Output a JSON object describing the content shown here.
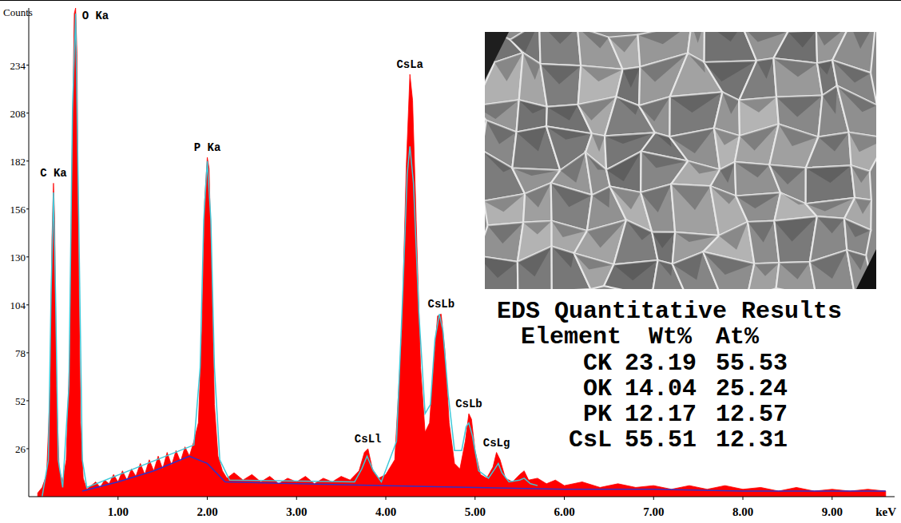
{
  "chart_data": {
    "type": "area",
    "x_label": "keV",
    "y_label": "Counts",
    "xlim": [
      0,
      9.7
    ],
    "ylim": [
      0,
      265
    ],
    "xticks": [
      {
        "value": 1,
        "label": "1.00"
      },
      {
        "value": 2,
        "label": "2.00"
      },
      {
        "value": 3,
        "label": "3.00"
      },
      {
        "value": 4,
        "label": "4.00"
      },
      {
        "value": 5,
        "label": "5.00"
      },
      {
        "value": 6,
        "label": "6.00"
      },
      {
        "value": 7,
        "label": "7.00"
      },
      {
        "value": 8,
        "label": "8.00"
      },
      {
        "value": 9,
        "label": "9.00"
      }
    ],
    "yticks": [
      26,
      52,
      78,
      104,
      130,
      156,
      182,
      208,
      234
    ],
    "grid": false,
    "series": [
      {
        "type": "area",
        "color": "#ff0000",
        "x": [
          0.1,
          0.15,
          0.2,
          0.24,
          0.26,
          0.277,
          0.29,
          0.31,
          0.34,
          0.38,
          0.42,
          0.46,
          0.49,
          0.51,
          0.525,
          0.54,
          0.56,
          0.58,
          0.61,
          0.65,
          0.7,
          0.75,
          0.8,
          0.85,
          0.9,
          0.95,
          1.0,
          1.05,
          1.1,
          1.15,
          1.2,
          1.25,
          1.3,
          1.35,
          1.4,
          1.45,
          1.5,
          1.55,
          1.6,
          1.65,
          1.7,
          1.75,
          1.8,
          1.85,
          1.9,
          1.94,
          1.97,
          2.0,
          2.02,
          2.05,
          2.08,
          2.12,
          2.17,
          2.22,
          2.3,
          2.4,
          2.5,
          2.6,
          2.7,
          2.8,
          2.9,
          3.0,
          3.1,
          3.2,
          3.3,
          3.4,
          3.5,
          3.6,
          3.7,
          3.76,
          3.8,
          3.85,
          3.92,
          4.0,
          4.1,
          4.18,
          4.23,
          4.27,
          4.3,
          4.34,
          4.39,
          4.44,
          4.49,
          4.54,
          4.58,
          4.62,
          4.66,
          4.71,
          4.77,
          4.83,
          4.89,
          4.93,
          4.96,
          5.0,
          5.06,
          5.13,
          5.2,
          5.24,
          5.28,
          5.34,
          5.42,
          5.5,
          5.55,
          5.6,
          5.7,
          5.8,
          5.9,
          6.0,
          6.2,
          6.4,
          6.6,
          6.8,
          7.0,
          7.2,
          7.4,
          7.6,
          7.8,
          8.0,
          8.2,
          8.4,
          8.6,
          8.8,
          9.0,
          9.2,
          9.4,
          9.6
        ],
        "values": [
          2,
          5,
          12,
          60,
          140,
          170,
          150,
          60,
          15,
          8,
          20,
          80,
          200,
          262,
          265,
          240,
          120,
          40,
          10,
          4,
          6,
          8,
          5,
          9,
          7,
          12,
          8,
          14,
          9,
          15,
          11,
          18,
          12,
          20,
          14,
          22,
          15,
          24,
          17,
          25,
          19,
          27,
          22,
          30,
          40,
          90,
          160,
          184,
          178,
          120,
          50,
          22,
          14,
          10,
          13,
          9,
          12,
          8,
          11,
          7,
          10,
          8,
          11,
          7,
          10,
          8,
          11,
          9,
          14,
          24,
          26,
          15,
          10,
          12,
          20,
          90,
          180,
          229,
          215,
          150,
          70,
          35,
          40,
          75,
          98,
          99,
          80,
          40,
          18,
          15,
          30,
          45,
          42,
          25,
          12,
          10,
          16,
          24,
          20,
          10,
          8,
          12,
          14,
          9,
          10,
          7,
          9,
          6,
          8,
          5,
          7,
          5,
          6,
          4,
          6,
          4,
          6,
          4,
          5,
          3,
          5,
          3,
          4,
          3,
          4,
          3
        ]
      },
      {
        "type": "line",
        "color": "#3030c8",
        "x": [
          0.6,
          1.0,
          1.4,
          1.8,
          2.0,
          2.2,
          3.0,
          4.0,
          5.0,
          6.0,
          7.0,
          8.0,
          9.6
        ],
        "values": [
          3,
          8,
          14,
          22,
          18,
          8,
          7,
          6,
          5,
          4,
          4,
          3,
          3
        ]
      },
      {
        "type": "line",
        "color": "#40c8d8",
        "x": [
          0.15,
          0.22,
          0.25,
          0.277,
          0.3,
          0.33,
          0.38,
          0.45,
          0.49,
          0.525,
          0.56,
          0.6,
          0.65,
          1.85,
          1.92,
          1.96,
          2.0,
          2.04,
          2.08,
          2.14,
          2.25,
          3.65,
          3.73,
          3.79,
          3.86,
          3.95,
          4.12,
          4.19,
          4.24,
          4.27,
          4.31,
          4.37,
          4.44,
          4.5,
          4.55,
          4.6,
          4.64,
          4.7,
          4.77,
          4.85,
          4.9,
          4.93,
          4.97,
          5.04,
          5.15,
          5.22,
          5.26,
          5.3,
          5.38,
          5.5,
          5.55,
          5.62,
          5.7
        ],
        "values": [
          0,
          20,
          110,
          165,
          110,
          20,
          5,
          60,
          210,
          262,
          150,
          20,
          5,
          28,
          70,
          150,
          182,
          150,
          70,
          20,
          9,
          8,
          15,
          22,
          14,
          8,
          30,
          110,
          175,
          190,
          170,
          100,
          45,
          50,
          85,
          99,
          90,
          55,
          25,
          25,
          38,
          40,
          33,
          14,
          10,
          15,
          18,
          13,
          8,
          9,
          10,
          7,
          6
        ]
      }
    ],
    "annotations": [
      {
        "text": "C Ka",
        "x": 0.277,
        "y": 170
      },
      {
        "text": "O Ka",
        "x": 0.525,
        "y": 265
      },
      {
        "text": "P Ka",
        "x": 2.0,
        "y": 184
      },
      {
        "text": "CsLl",
        "x": 3.8,
        "y": 26
      },
      {
        "text": "CsLa",
        "x": 4.27,
        "y": 229
      },
      {
        "text": "CsLb",
        "x": 4.62,
        "y": 99
      },
      {
        "text": "CsLb",
        "x": 4.93,
        "y": 45
      },
      {
        "text": "CsLg",
        "x": 5.24,
        "y": 24
      }
    ],
    "table": {
      "title": "EDS Quantitative Results",
      "columns": [
        "Element",
        "Wt%",
        "At%"
      ],
      "rows": [
        [
          "CK",
          23.19,
          55.53
        ],
        [
          "OK",
          14.04,
          25.24
        ],
        [
          "PK",
          12.17,
          12.57
        ],
        [
          "CsL",
          55.51,
          12.31
        ]
      ]
    }
  }
}
